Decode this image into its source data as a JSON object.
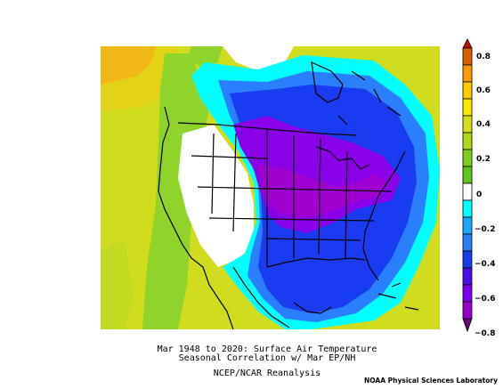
{
  "caption": {
    "line1": "Mar 1948 to 2020: Surface Air Temperature",
    "line2": "Seasonal Correlation w/ Mar EP/NH",
    "line3": "NCEP/NCAR Reanalysis"
  },
  "credit": "NOAA Physical Sciences Laboratory",
  "colorbar": {
    "labels": [
      "0.8",
      "0.6",
      "0.4",
      "0.2",
      "0",
      "−0.2",
      "−0.4",
      "−0.6",
      "−0.8"
    ],
    "colors": [
      "#e05a00",
      "#ff9900",
      "#ffd700",
      "#d4e01c",
      "#7bd11a",
      "#ffffff",
      "#00ffff",
      "#2a7fff",
      "#1a2fe8",
      "#7a00ee",
      "#9900cc"
    ]
  },
  "map": {
    "region": "North America",
    "variable": "Surface Air Temperature correlation",
    "colors": {
      "ocean_green": "#c6e02a",
      "pacific_yellow": "#e0d020",
      "orange": "#f0a020",
      "light_green": "#8ed42a",
      "cyan": "#00ffff",
      "blue_light": "#2a7fff",
      "blue": "#1a3cf0",
      "purple": "#8a00e8",
      "violet": "#a000d0",
      "white": "#ffffff"
    }
  }
}
